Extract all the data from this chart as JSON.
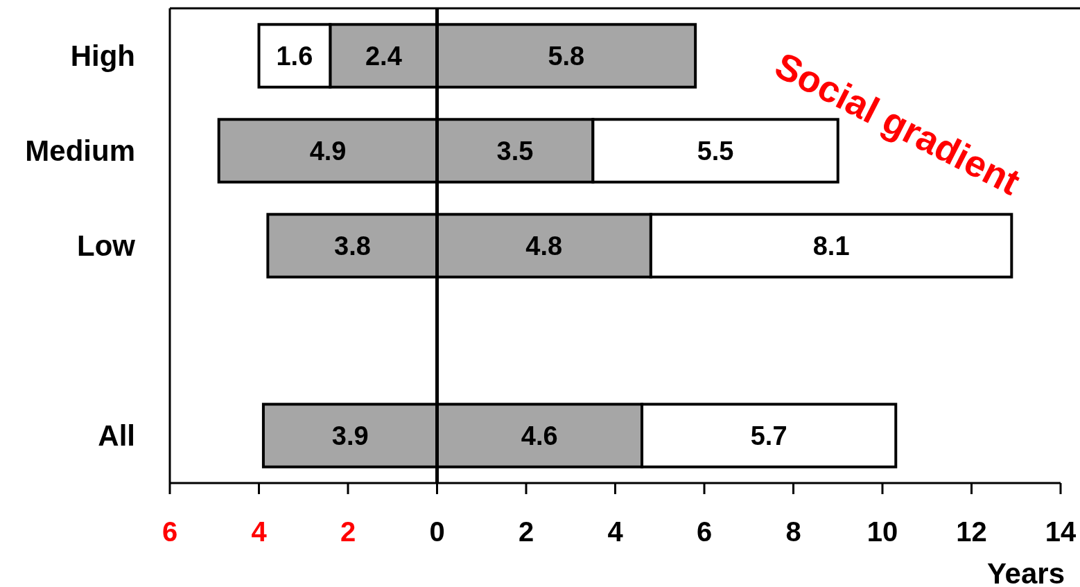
{
  "chart_data": {
    "type": "bar",
    "orientation": "horizontal",
    "xlabel": "Years",
    "categories": [
      "High",
      "Medium",
      "Low",
      null,
      "All"
    ],
    "series": [
      {
        "color": "#a6a6a6",
        "values": [
          2.4,
          4.9,
          3.8,
          null,
          3.9
        ],
        "base": [
          -2.4,
          -4.9,
          -3.8,
          null,
          -3.9
        ]
      },
      {
        "color": "#ffffff",
        "values": [
          1.6,
          null,
          null,
          null,
          null
        ],
        "base": [
          -4.0,
          null,
          null,
          null,
          null
        ]
      },
      {
        "color": "#a6a6a6",
        "values": [
          5.8,
          3.5,
          4.8,
          null,
          4.6
        ],
        "base": [
          0,
          0,
          0,
          null,
          0
        ]
      },
      {
        "color": "#ffffff",
        "values": [
          null,
          5.5,
          8.1,
          null,
          5.7
        ],
        "base": [
          null,
          3.5,
          4.8,
          null,
          4.6
        ]
      }
    ],
    "data_labels": true,
    "xlim": [
      -6,
      14
    ],
    "xticks": [
      {
        "value": -6,
        "label": "6"
      },
      {
        "value": -4,
        "label": "4"
      },
      {
        "value": -2,
        "label": "2"
      },
      0,
      2,
      4,
      6,
      8,
      10,
      12,
      14
    ],
    "ref_lines": [
      {
        "axis": "x",
        "value": 0,
        "color": "#000000"
      }
    ],
    "annotations": [
      "Social gradient"
    ],
    "grid": false
  }
}
